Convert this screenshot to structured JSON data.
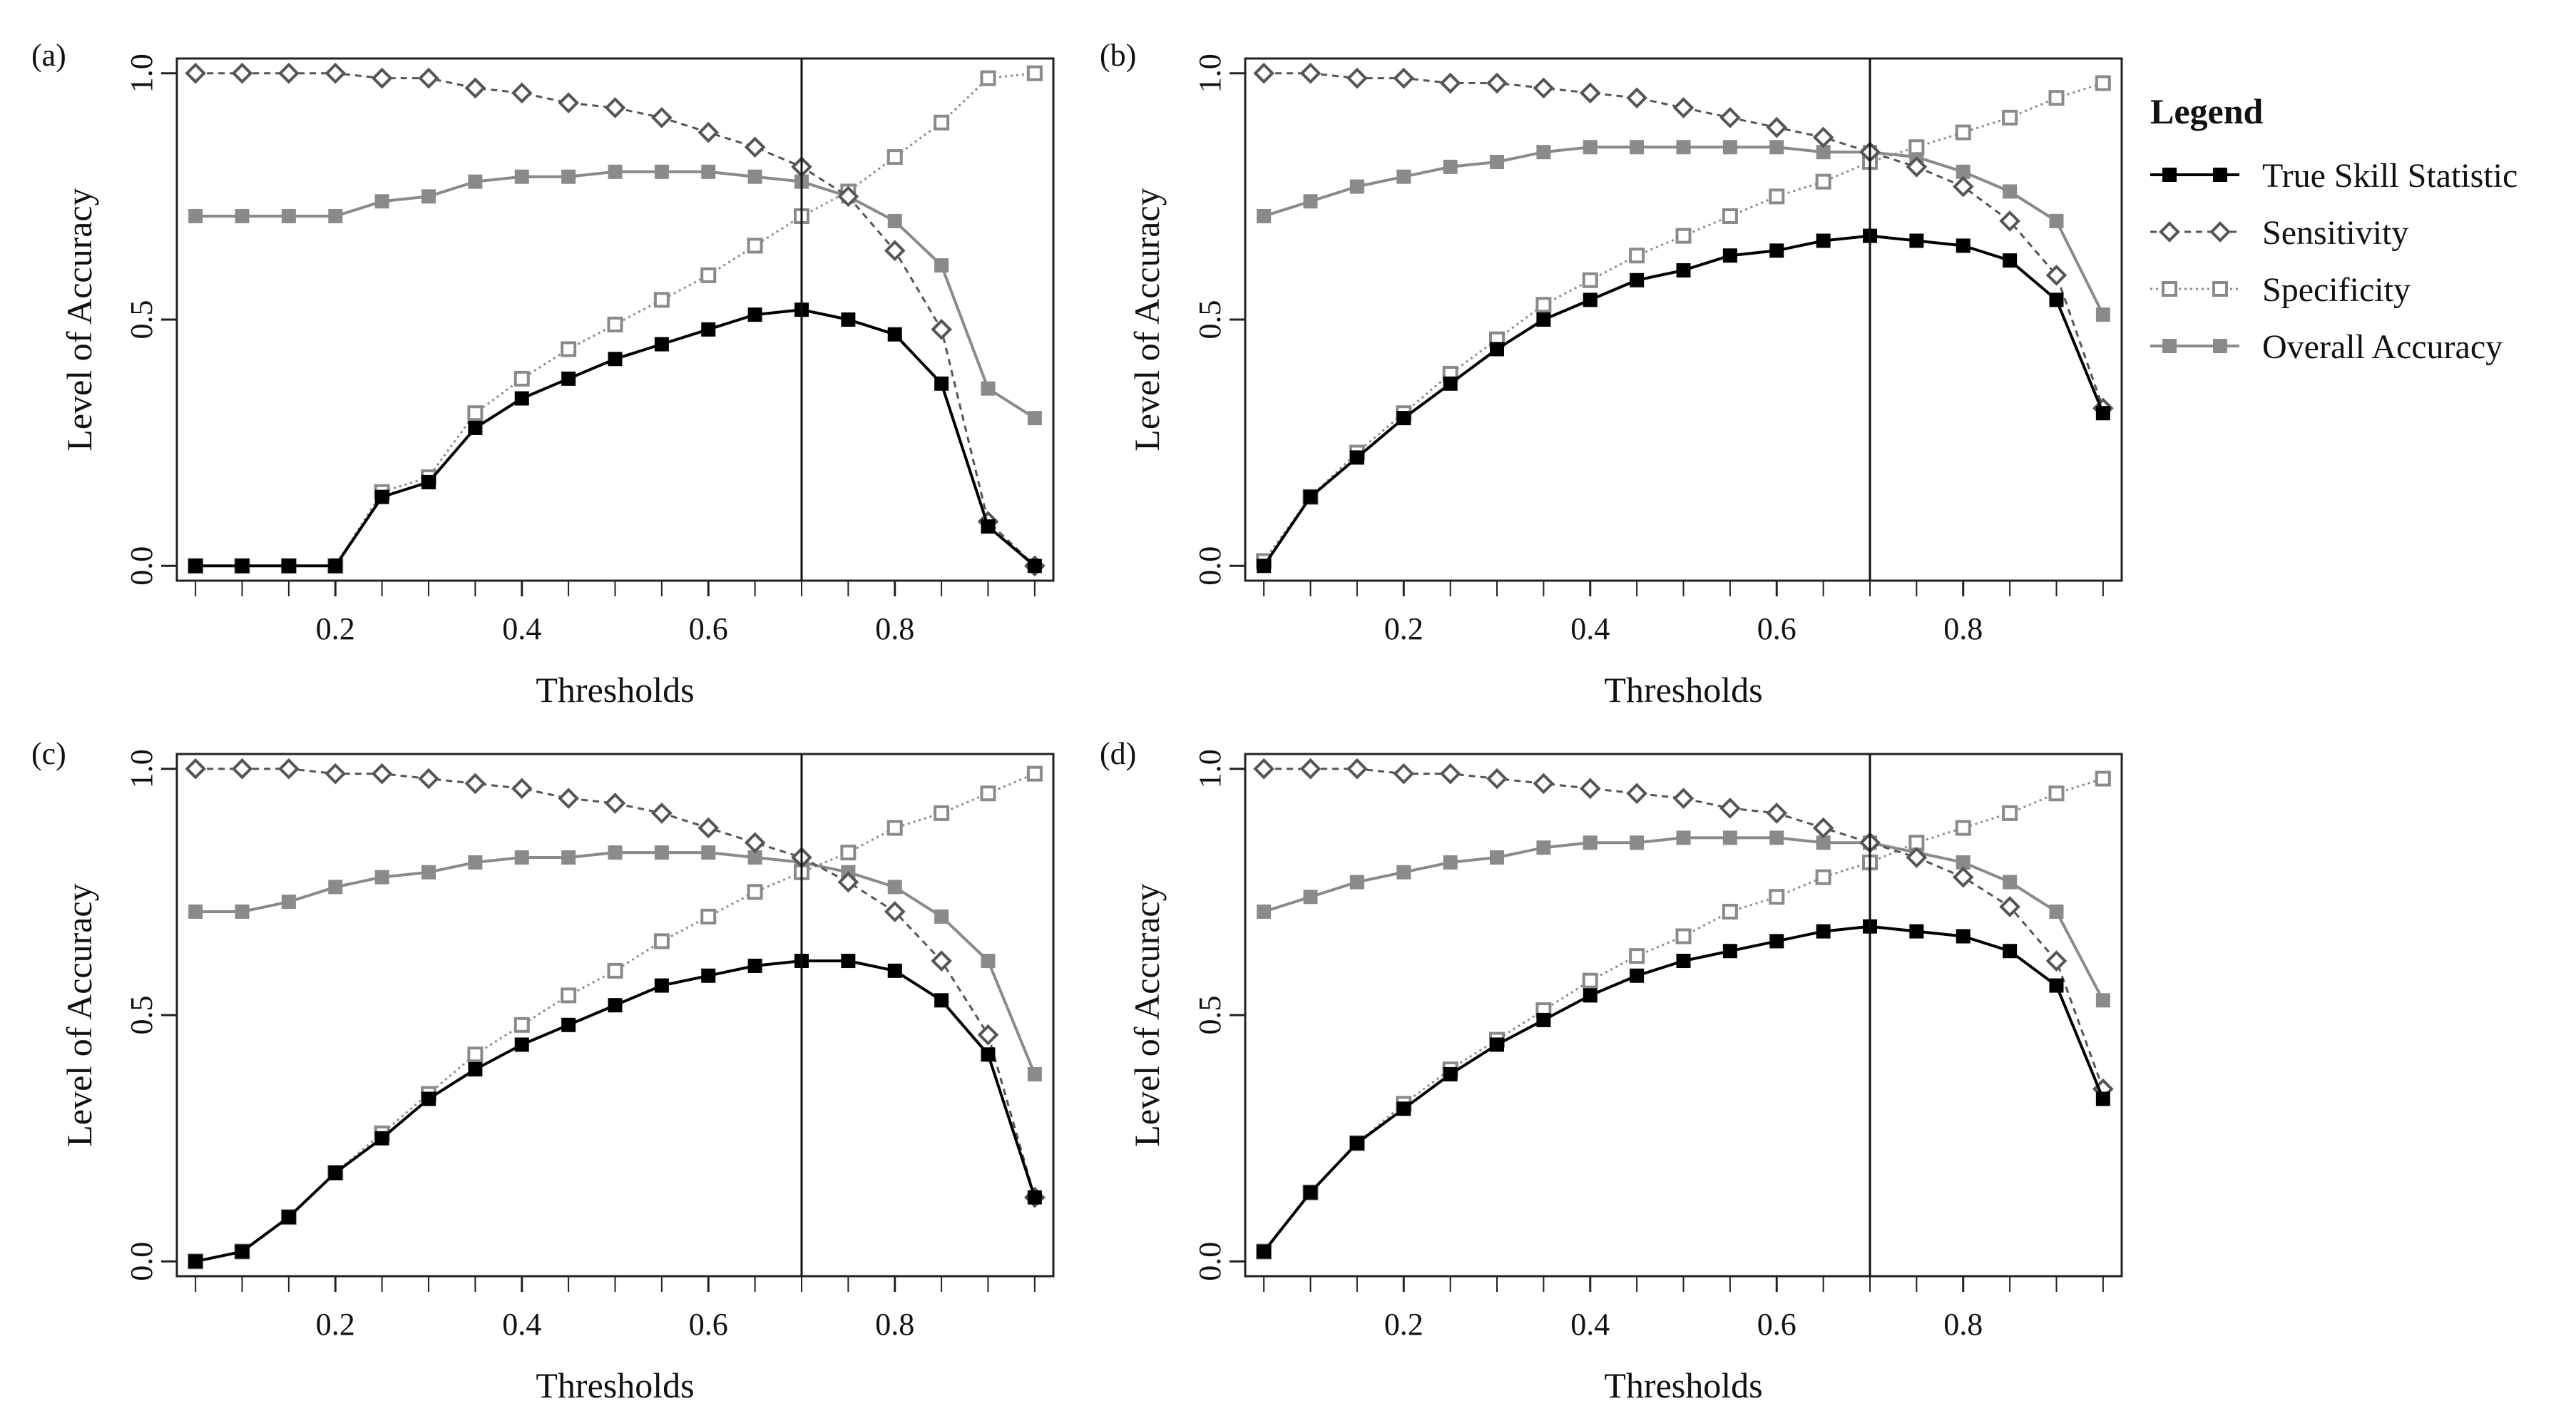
{
  "colors": {
    "tss": "#000000",
    "sensitivity_stroke": "#555555",
    "specificity_stroke": "#8a8a8a",
    "overall": "#8a8a8a",
    "axes": "#222222",
    "threshold_line": "#111111"
  },
  "legend": {
    "title": "Legend",
    "items": [
      {
        "key": "tss",
        "label": "True Skill Statistic"
      },
      {
        "key": "sensitivity",
        "label": "Sensitivity"
      },
      {
        "key": "specificity",
        "label": "Specificity"
      },
      {
        "key": "overall",
        "label": "Overall Accuracy"
      }
    ]
  },
  "chart_data": [
    {
      "type": "line",
      "panel": "(a)",
      "xlabel": "Thresholds",
      "ylabel": "Level of Accuracy",
      "xlim": [
        0.03,
        0.97
      ],
      "ylim": [
        -0.03,
        1.03
      ],
      "xticks": [
        0.2,
        0.4,
        0.6,
        0.8
      ],
      "xtick_labels": [
        "0.2",
        "0.4",
        "0.6",
        "0.8"
      ],
      "yticks": [
        0.0,
        0.5,
        1.0
      ],
      "ytick_labels": [
        "0.0",
        "0.5",
        "1.0"
      ],
      "threshold_line": 0.7,
      "x": [
        0.05,
        0.1,
        0.15,
        0.2,
        0.25,
        0.3,
        0.35,
        0.4,
        0.45,
        0.5,
        0.55,
        0.6,
        0.65,
        0.7,
        0.75,
        0.8,
        0.85,
        0.9,
        0.95
      ],
      "series": [
        {
          "key": "tss",
          "name": "True Skill Statistic",
          "values": [
            0.0,
            0.0,
            0.0,
            0.0,
            0.14,
            0.17,
            0.28,
            0.34,
            0.38,
            0.42,
            0.45,
            0.48,
            0.51,
            0.52,
            0.5,
            0.47,
            0.37,
            0.08,
            0.0
          ]
        },
        {
          "key": "sensitivity",
          "name": "Sensitivity",
          "values": [
            1.0,
            1.0,
            1.0,
            1.0,
            0.99,
            0.99,
            0.97,
            0.96,
            0.94,
            0.93,
            0.91,
            0.88,
            0.85,
            0.81,
            0.75,
            0.64,
            0.48,
            0.09,
            0.0
          ]
        },
        {
          "key": "specificity",
          "name": "Specificity",
          "values": [
            0.0,
            0.0,
            0.0,
            0.0,
            0.15,
            0.18,
            0.31,
            0.38,
            0.44,
            0.49,
            0.54,
            0.59,
            0.65,
            0.71,
            0.76,
            0.83,
            0.9,
            0.99,
            1.0
          ]
        },
        {
          "key": "overall",
          "name": "Overall Accuracy",
          "values": [
            0.71,
            0.71,
            0.71,
            0.71,
            0.74,
            0.75,
            0.78,
            0.79,
            0.79,
            0.8,
            0.8,
            0.8,
            0.79,
            0.78,
            0.75,
            0.7,
            0.61,
            0.36,
            0.3
          ]
        }
      ]
    },
    {
      "type": "line",
      "panel": "(b)",
      "xlabel": "Thresholds",
      "ylabel": "Level of Accuracy",
      "xlim": [
        0.03,
        0.97
      ],
      "ylim": [
        -0.03,
        1.03
      ],
      "xticks": [
        0.2,
        0.4,
        0.6,
        0.8
      ],
      "xtick_labels": [
        "0.2",
        "0.4",
        "0.6",
        "0.8"
      ],
      "yticks": [
        0.0,
        0.5,
        1.0
      ],
      "ytick_labels": [
        "0.0",
        "0.5",
        "1.0"
      ],
      "threshold_line": 0.7,
      "x": [
        0.05,
        0.1,
        0.15,
        0.2,
        0.25,
        0.3,
        0.35,
        0.4,
        0.45,
        0.5,
        0.55,
        0.6,
        0.65,
        0.7,
        0.75,
        0.8,
        0.85,
        0.9,
        0.95
      ],
      "series": [
        {
          "key": "tss",
          "name": "True Skill Statistic",
          "values": [
            0.0,
            0.14,
            0.22,
            0.3,
            0.37,
            0.44,
            0.5,
            0.54,
            0.58,
            0.6,
            0.63,
            0.64,
            0.66,
            0.67,
            0.66,
            0.65,
            0.62,
            0.54,
            0.31
          ]
        },
        {
          "key": "sensitivity",
          "name": "Sensitivity",
          "values": [
            1.0,
            1.0,
            0.99,
            0.99,
            0.98,
            0.98,
            0.97,
            0.96,
            0.95,
            0.93,
            0.91,
            0.89,
            0.87,
            0.84,
            0.81,
            0.77,
            0.7,
            0.59,
            0.32
          ]
        },
        {
          "key": "specificity",
          "name": "Specificity",
          "values": [
            0.01,
            0.14,
            0.23,
            0.31,
            0.39,
            0.46,
            0.53,
            0.58,
            0.63,
            0.67,
            0.71,
            0.75,
            0.78,
            0.82,
            0.85,
            0.88,
            0.91,
            0.95,
            0.98
          ]
        },
        {
          "key": "overall",
          "name": "Overall Accuracy",
          "values": [
            0.71,
            0.74,
            0.77,
            0.79,
            0.81,
            0.82,
            0.84,
            0.85,
            0.85,
            0.85,
            0.85,
            0.85,
            0.84,
            0.84,
            0.83,
            0.8,
            0.76,
            0.7,
            0.51
          ]
        }
      ]
    },
    {
      "type": "line",
      "panel": "(c)",
      "xlabel": "Thresholds",
      "ylabel": "Level of Accuracy",
      "xlim": [
        0.03,
        0.97
      ],
      "ylim": [
        -0.03,
        1.03
      ],
      "xticks": [
        0.2,
        0.4,
        0.6,
        0.8
      ],
      "xtick_labels": [
        "0.2",
        "0.4",
        "0.6",
        "0.8"
      ],
      "yticks": [
        0.0,
        0.5,
        1.0
      ],
      "ytick_labels": [
        "0.0",
        "0.5",
        "1.0"
      ],
      "threshold_line": 0.7,
      "x": [
        0.05,
        0.1,
        0.15,
        0.2,
        0.25,
        0.3,
        0.35,
        0.4,
        0.45,
        0.5,
        0.55,
        0.6,
        0.65,
        0.7,
        0.75,
        0.8,
        0.85,
        0.9,
        0.95
      ],
      "series": [
        {
          "key": "tss",
          "name": "True Skill Statistic",
          "values": [
            0.0,
            0.02,
            0.09,
            0.18,
            0.25,
            0.33,
            0.39,
            0.44,
            0.48,
            0.52,
            0.56,
            0.58,
            0.6,
            0.61,
            0.61,
            0.59,
            0.53,
            0.42,
            0.13
          ]
        },
        {
          "key": "sensitivity",
          "name": "Sensitivity",
          "values": [
            1.0,
            1.0,
            1.0,
            0.99,
            0.99,
            0.98,
            0.97,
            0.96,
            0.94,
            0.93,
            0.91,
            0.88,
            0.85,
            0.82,
            0.77,
            0.71,
            0.61,
            0.46,
            0.13
          ]
        },
        {
          "key": "specificity",
          "name": "Specificity",
          "values": [
            0.0,
            0.02,
            0.09,
            0.18,
            0.26,
            0.34,
            0.42,
            0.48,
            0.54,
            0.59,
            0.65,
            0.7,
            0.75,
            0.79,
            0.83,
            0.88,
            0.91,
            0.95,
            0.99
          ]
        },
        {
          "key": "overall",
          "name": "Overall Accuracy",
          "values": [
            0.71,
            0.71,
            0.73,
            0.76,
            0.78,
            0.79,
            0.81,
            0.82,
            0.82,
            0.83,
            0.83,
            0.83,
            0.82,
            0.81,
            0.79,
            0.76,
            0.7,
            0.61,
            0.38
          ]
        }
      ]
    },
    {
      "type": "line",
      "panel": "(d)",
      "xlabel": "Thresholds",
      "ylabel": "Level of Accuracy",
      "xlim": [
        0.03,
        0.97
      ],
      "ylim": [
        -0.03,
        1.03
      ],
      "xticks": [
        0.2,
        0.4,
        0.6,
        0.8
      ],
      "xtick_labels": [
        "0.2",
        "0.4",
        "0.6",
        "0.8"
      ],
      "yticks": [
        0.0,
        0.5,
        1.0
      ],
      "ytick_labels": [
        "0.0",
        "0.5",
        "1.0"
      ],
      "threshold_line": 0.7,
      "x": [
        0.05,
        0.1,
        0.15,
        0.2,
        0.25,
        0.3,
        0.35,
        0.4,
        0.45,
        0.5,
        0.55,
        0.6,
        0.65,
        0.7,
        0.75,
        0.8,
        0.85,
        0.9,
        0.95
      ],
      "series": [
        {
          "key": "tss",
          "name": "True Skill Statistic",
          "values": [
            0.02,
            0.14,
            0.24,
            0.31,
            0.38,
            0.44,
            0.49,
            0.54,
            0.58,
            0.61,
            0.63,
            0.65,
            0.67,
            0.68,
            0.67,
            0.66,
            0.63,
            0.56,
            0.33
          ]
        },
        {
          "key": "sensitivity",
          "name": "Sensitivity",
          "values": [
            1.0,
            1.0,
            1.0,
            0.99,
            0.99,
            0.98,
            0.97,
            0.96,
            0.95,
            0.94,
            0.92,
            0.91,
            0.88,
            0.85,
            0.82,
            0.78,
            0.72,
            0.61,
            0.35
          ]
        },
        {
          "key": "specificity",
          "name": "Specificity",
          "values": [
            0.02,
            0.14,
            0.24,
            0.32,
            0.39,
            0.45,
            0.51,
            0.57,
            0.62,
            0.66,
            0.71,
            0.74,
            0.78,
            0.81,
            0.85,
            0.88,
            0.91,
            0.95,
            0.98
          ]
        },
        {
          "key": "overall",
          "name": "Overall Accuracy",
          "values": [
            0.71,
            0.74,
            0.77,
            0.79,
            0.81,
            0.82,
            0.84,
            0.85,
            0.85,
            0.86,
            0.86,
            0.86,
            0.85,
            0.85,
            0.83,
            0.81,
            0.77,
            0.71,
            0.53
          ]
        }
      ]
    }
  ]
}
